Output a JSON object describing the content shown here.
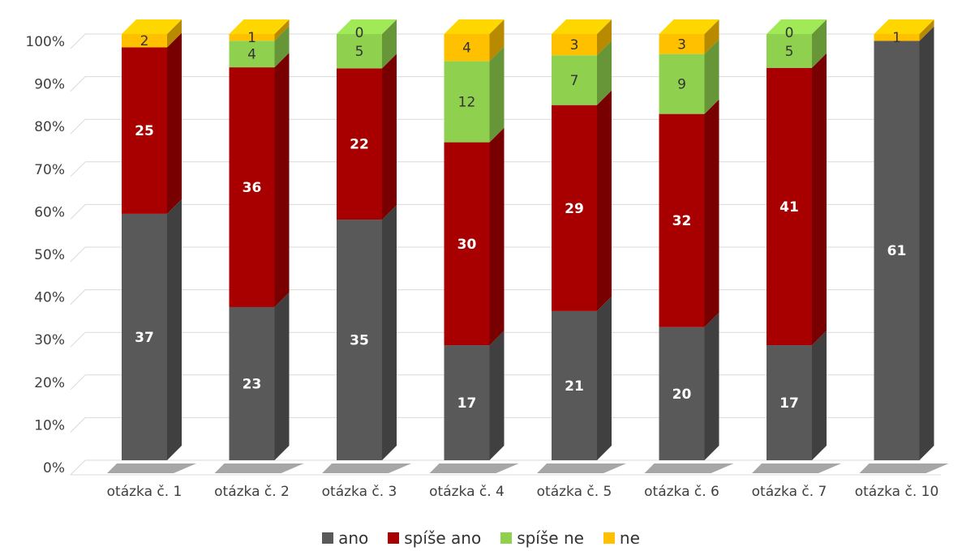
{
  "chart_data": {
    "type": "bar",
    "stacked": true,
    "percent_stacked": true,
    "three_d": true,
    "categories": [
      "otázka č. 1",
      "otázka č. 2",
      "otázka č. 3",
      "otázka č. 4",
      "otázka č. 5",
      "otázka č. 6",
      "otázka č. 7",
      "otázka č. 10"
    ],
    "series": [
      {
        "name": "ano",
        "color": "#595959",
        "values": [
          37,
          23,
          35,
          17,
          21,
          20,
          17,
          61
        ]
      },
      {
        "name": "spíše ano",
        "color": "#a80000",
        "values": [
          25,
          36,
          22,
          30,
          29,
          32,
          41,
          0
        ]
      },
      {
        "name": "spíše ne",
        "color": "#8fd14f",
        "values": [
          0,
          4,
          5,
          12,
          7,
          9,
          5,
          0
        ]
      },
      {
        "name": "ne",
        "color": "#ffc000",
        "values": [
          2,
          1,
          0,
          4,
          3,
          3,
          0,
          1
        ]
      }
    ],
    "data_labels": [
      [
        "37",
        "23",
        "35",
        "17",
        "21",
        "20",
        "17",
        "61"
      ],
      [
        "25",
        "36",
        "22",
        "30",
        "29",
        "32",
        "41",
        ""
      ],
      [
        "",
        "4",
        "5",
        "12",
        "7",
        "9",
        "5",
        ""
      ],
      [
        "2",
        "1",
        "0",
        "4",
        "3",
        "3",
        "0",
        "1"
      ]
    ],
    "y_ticks": [
      "0%",
      "10%",
      "20%",
      "30%",
      "40%",
      "50%",
      "60%",
      "70%",
      "80%",
      "90%",
      "100%"
    ],
    "ylim": [
      0,
      100
    ],
    "grid": true,
    "legend_position": "bottom"
  }
}
